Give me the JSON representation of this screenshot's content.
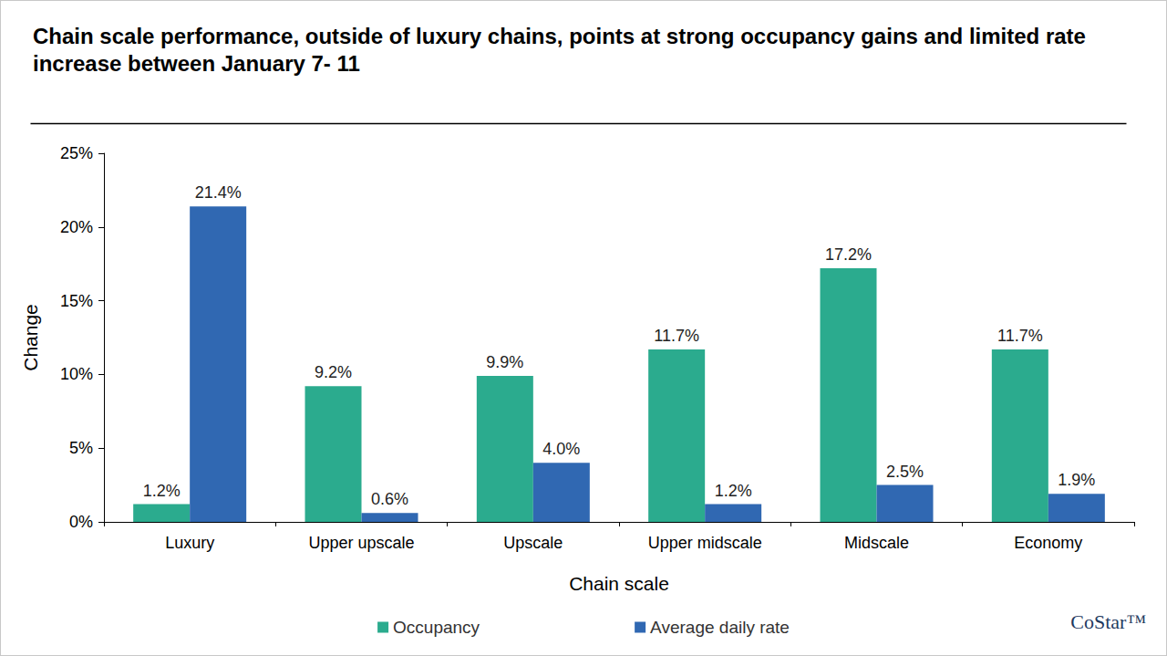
{
  "chart_data": {
    "type": "bar",
    "title": "Chain scale performance, outside of luxury chains, points at strong occupancy gains and limited rate increase between January 7- 11",
    "x_label": "Chain scale",
    "y_label": "Change",
    "categories": [
      "Luxury",
      "Upper upscale",
      "Upscale",
      "Upper midscale",
      "Midscale",
      "Economy"
    ],
    "series": [
      {
        "name": "Occupancy",
        "color": "#2bab8e",
        "values": [
          1.2,
          9.2,
          9.9,
          11.7,
          17.2,
          11.7
        ],
        "value_labels": [
          "1.2%",
          "9.2%",
          "9.9%",
          "11.7%",
          "17.2%",
          "11.7%"
        ]
      },
      {
        "name": "Average daily rate",
        "color": "#3068b2",
        "values": [
          21.4,
          0.6,
          4.0,
          1.2,
          2.5,
          1.9
        ],
        "value_labels": [
          "21.4%",
          "0.6%",
          "4.0%",
          "1.2%",
          "2.5%",
          "1.9%"
        ]
      }
    ],
    "ylim": [
      0,
      25
    ],
    "yticks": [
      {
        "value": 0,
        "label": "0%"
      },
      {
        "value": 5,
        "label": "5%"
      },
      {
        "value": 10,
        "label": "10%"
      },
      {
        "value": 15,
        "label": "15%"
      },
      {
        "value": 20,
        "label": "20%"
      },
      {
        "value": 25,
        "label": "25%"
      }
    ],
    "grid": false,
    "legend": "bottom",
    "data_labels": true,
    "annotations": [
      "CoStar™"
    ]
  }
}
